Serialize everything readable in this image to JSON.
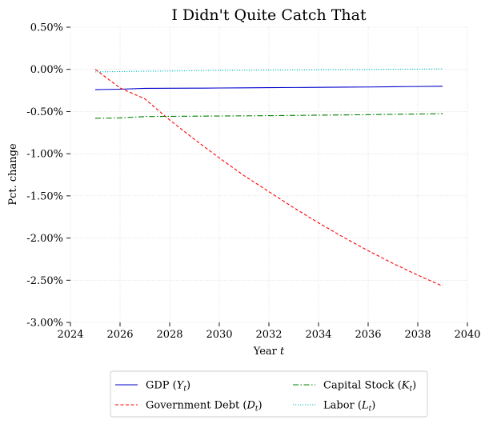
{
  "chart_data": {
    "type": "line",
    "title": "I Didn't Quite Catch That",
    "xlabel": "Year",
    "xlabel_var": "t",
    "ylabel": "Pct. change",
    "xlim": [
      2024,
      2040
    ],
    "ylim": [
      -3.0,
      0.5
    ],
    "xticks": [
      2024,
      2026,
      2028,
      2030,
      2032,
      2034,
      2036,
      2038,
      2040
    ],
    "yticks": [
      0.5,
      0.0,
      -0.5,
      -1.0,
      -1.5,
      -2.0,
      -2.5,
      -3.0
    ],
    "ytick_labels": [
      "0.50%",
      "0.00%",
      "-0.50%",
      "-1.00%",
      "-1.50%",
      "-2.00%",
      "-2.50%",
      "-3.00%"
    ],
    "grid": true,
    "legend_placement": "bottom-center",
    "x": [
      2025,
      2026,
      2027,
      2028,
      2029,
      2030,
      2031,
      2032,
      2033,
      2034,
      2035,
      2036,
      2037,
      2038,
      2039
    ],
    "series": [
      {
        "name": "GDP",
        "symbol": "Y",
        "color": "#0000cc",
        "style": "solid",
        "values": [
          -0.24,
          -0.235,
          -0.225,
          -0.224,
          -0.223,
          -0.221,
          -0.219,
          -0.217,
          -0.215,
          -0.213,
          -0.211,
          -0.209,
          -0.206,
          -0.203,
          -0.2
        ]
      },
      {
        "name": "Government Debt",
        "symbol": "D",
        "color": "#ff0000",
        "style": "dashed",
        "values": [
          0.0,
          -0.22,
          -0.35,
          -0.6,
          -0.83,
          -1.05,
          -1.26,
          -1.45,
          -1.64,
          -1.82,
          -1.99,
          -2.15,
          -2.3,
          -2.44,
          -2.57
        ]
      },
      {
        "name": "Capital Stock",
        "symbol": "K",
        "color": "#008000",
        "style": "dashdot",
        "values": [
          -0.58,
          -0.575,
          -0.56,
          -0.557,
          -0.555,
          -0.553,
          -0.551,
          -0.549,
          -0.546,
          -0.543,
          -0.54,
          -0.537,
          -0.533,
          -0.529,
          -0.525
        ]
      },
      {
        "name": "Labor",
        "symbol": "L",
        "color": "#00bfbf",
        "style": "dotted",
        "values": [
          -0.03,
          -0.026,
          -0.022,
          -0.019,
          -0.016,
          -0.013,
          -0.011,
          -0.009,
          -0.007,
          -0.005,
          -0.003,
          -0.001,
          0.001,
          0.003,
          0.005
        ]
      }
    ]
  }
}
